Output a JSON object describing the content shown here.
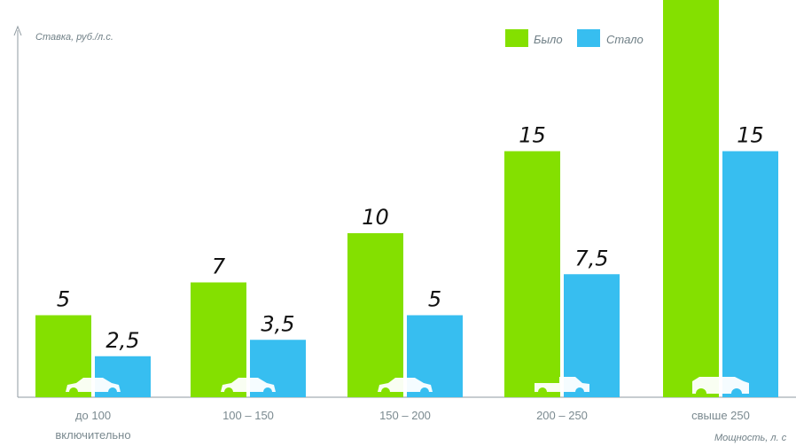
{
  "chart_data": {
    "type": "bar",
    "ylabel": "Ставка, руб./л.с.",
    "xlabel": "Мощность, л. с",
    "categories": [
      [
        "до 100",
        "включительно"
      ],
      [
        "100 – 150"
      ],
      [
        "150 – 200"
      ],
      [
        "200 – 250"
      ],
      [
        "свыше 250"
      ]
    ],
    "series": [
      {
        "name": "Было",
        "values": [
          5,
          7,
          10,
          15,
          30
        ],
        "labels": [
          "5",
          "7",
          "10",
          "15",
          ""
        ],
        "color": "#84e000"
      },
      {
        "name": "Стало",
        "values": [
          2.5,
          3.5,
          5,
          7.5,
          15
        ],
        "labels": [
          "2,5",
          "3,5",
          "5",
          "7,5",
          "15"
        ],
        "color": "#37bef0"
      }
    ],
    "ylim": [
      0,
      30
    ],
    "grid": false,
    "legend_position": "top-right",
    "icons": [
      "car-icon",
      "car-icon",
      "car-icon",
      "pickup-truck-icon",
      "suv-icon"
    ]
  }
}
